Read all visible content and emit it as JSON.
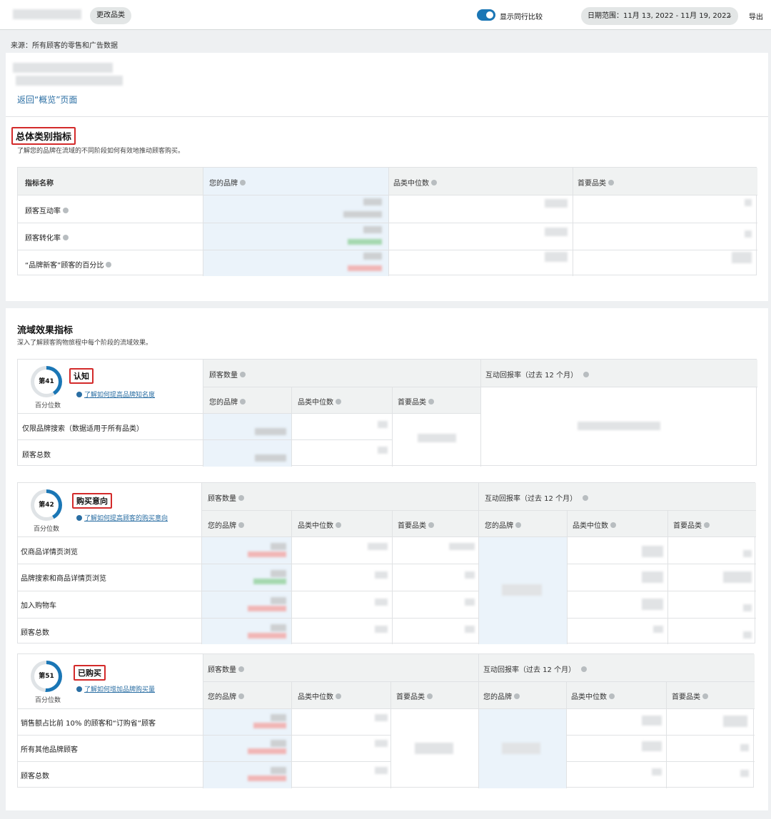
{
  "header": {
    "change_category": "更改品类",
    "toggle_label": "显示同行比较",
    "toggle_on": true,
    "date_range": "日期范围：11月 13, 2022 - 11月 19, 2022",
    "export": "导出",
    "accent_color": "#1a76b5"
  },
  "source": "来源：所有顾客的零售和广告数据",
  "back_link": "返回“概览”页面",
  "overall": {
    "title": "总体类别指标",
    "subtitle": "了解您的品牌在流域的不同阶段如何有效地推动顾客购买。",
    "columns": [
      "指标名称",
      "您的品牌",
      "品类中位数",
      "首要品类"
    ],
    "rows": [
      "顾客互动率",
      "顾客转化率",
      "“品牌新客”顾客的百分比"
    ]
  },
  "funnel": {
    "title": "流域效果指标",
    "subtitle": "深入了解顾客购物旅程中每个阶段的流域效果。",
    "group_customers": "顾客数量",
    "group_return": "互动回报率（过去 12 个月）",
    "col_brand": "您的品牌",
    "col_median": "品类中位数",
    "col_top": "首要品类",
    "percentile_label": "百分位数",
    "awareness": {
      "rank": "第41",
      "percentile": 41,
      "stage": "认知",
      "learn": "了解如何提高品牌知名度",
      "rows": [
        "仅限品牌搜索（数据适用于所有品类）",
        "顾客总数"
      ]
    },
    "consideration": {
      "rank": "第42",
      "percentile": 42,
      "stage": "购买意向",
      "learn": "了解如何提高顾客的购买意向",
      "rows": [
        "仅商品详情页浏览",
        "品牌搜索和商品详情页浏览",
        "加入购物车",
        "顾客总数"
      ]
    },
    "purchase": {
      "rank": "第51",
      "percentile": 51,
      "stage": "已购买",
      "learn": "了解如何增加品牌购买量",
      "rows": [
        "销售额占比前 10% 的顾客和“订购省”顾客",
        "所有其他品牌顾客",
        "顾客总数"
      ]
    }
  }
}
